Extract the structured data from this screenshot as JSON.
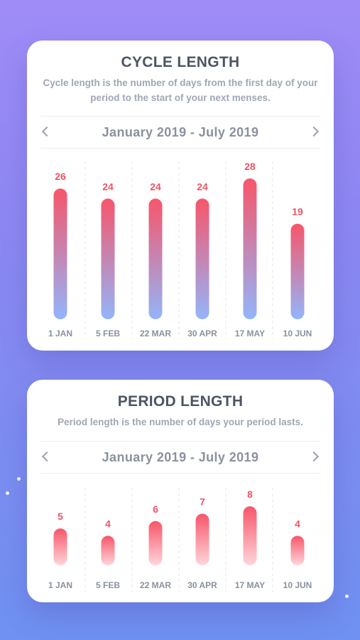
{
  "cycle_card": {
    "title": "CYCLE LENGTH",
    "description": "Cycle length is the number of days from the first day of your period to the start of your next menses.",
    "date_range": "January 2019 - July 2019"
  },
  "period_card": {
    "title": "PERIOD LENGTH",
    "description": "Period length is the number of days your period lasts.",
    "date_range": "January 2019 - July 2019"
  },
  "colors": {
    "value_label": "#ef5363",
    "bar_top": "#f7566a",
    "bar_bottom_cycle": "#93b5fb",
    "bar_bottom_period": "#fdd6da"
  },
  "icons": {
    "prev": "chevron-left-icon",
    "next": "chevron-right-icon"
  },
  "chart_data": [
    {
      "type": "bar",
      "categories": [
        "1 JAN",
        "5 FEB",
        "22 MAR",
        "30 APR",
        "17 MAY",
        "10 JUN"
      ],
      "values": [
        26,
        24,
        24,
        24,
        28,
        19
      ],
      "ylim": [
        0,
        28
      ],
      "grid": false
    },
    {
      "type": "bar",
      "categories": [
        "1 JAN",
        "5 FEB",
        "22 MAR",
        "30 APR",
        "17 MAY",
        "10 JUN"
      ],
      "values": [
        5,
        4,
        6,
        7,
        8,
        4
      ],
      "ylim": [
        0,
        8
      ],
      "grid": false
    }
  ]
}
